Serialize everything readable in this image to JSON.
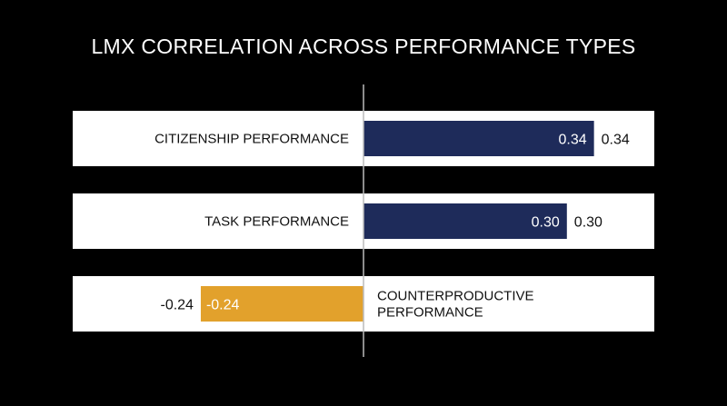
{
  "title": "LMX CORRELATION ACROSS PERFORMANCE TYPES",
  "colors": {
    "background": "#000000",
    "row_background": "#ffffff",
    "positive": "#1e2b5a",
    "negative": "#e2a12c",
    "axis": "#bbbbbb"
  },
  "chart_data": {
    "type": "bar",
    "orientation": "horizontal",
    "title": "LMX CORRELATION ACROSS PERFORMANCE TYPES",
    "categories": [
      "CITIZENSHIP PERFORMANCE",
      "TASK PERFORMANCE",
      "COUNTERPRODUCTIVE PERFORMANCE"
    ],
    "label_lines": [
      [
        "CITIZENSHIP PERFORMANCE"
      ],
      [
        "TASK PERFORMANCE"
      ],
      [
        "COUNTERPRODUCTIVE",
        "PERFORMANCE"
      ]
    ],
    "values": [
      0.34,
      0.3,
      -0.24
    ],
    "value_labels": [
      "0.34",
      "0.30",
      "-0.24"
    ],
    "xlim": [
      -0.4,
      0.4
    ],
    "xlabel": "",
    "ylabel": "",
    "grid": false,
    "legend": "none"
  }
}
